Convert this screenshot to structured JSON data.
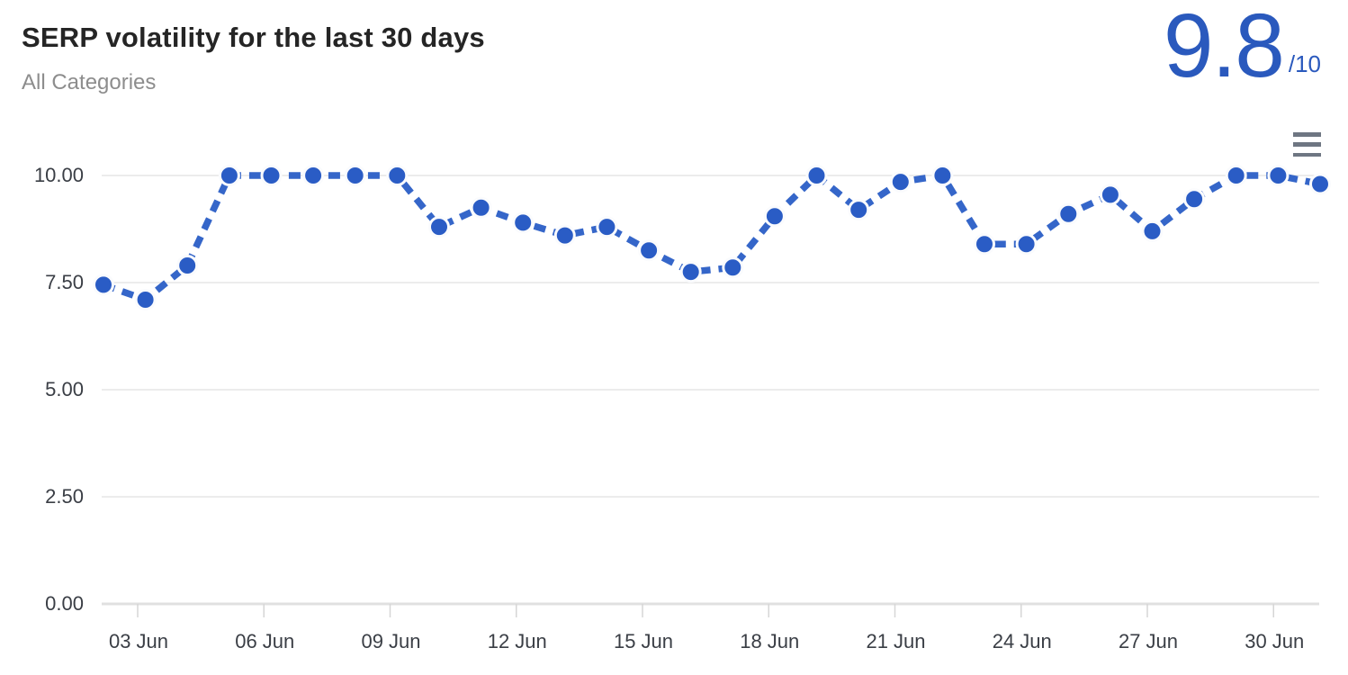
{
  "header": {
    "title": "SERP volatility for the last 30 days",
    "subtitle": "All Categories"
  },
  "score": {
    "value": "9.8",
    "denominator": "/10",
    "color": "#2a59bd"
  },
  "menu": {
    "icon": "hamburger-menu-icon"
  },
  "chart_data": {
    "type": "line",
    "title": "SERP volatility for the last 30 days",
    "subtitle": "All Categories",
    "x": [
      "02 Jun",
      "03 Jun",
      "04 Jun",
      "05 Jun",
      "06 Jun",
      "07 Jun",
      "08 Jun",
      "09 Jun",
      "10 Jun",
      "11 Jun",
      "12 Jun",
      "13 Jun",
      "14 Jun",
      "15 Jun",
      "16 Jun",
      "17 Jun",
      "18 Jun",
      "19 Jun",
      "20 Jun",
      "21 Jun",
      "22 Jun",
      "23 Jun",
      "24 Jun",
      "25 Jun",
      "26 Jun",
      "27 Jun",
      "28 Jun",
      "29 Jun",
      "30 Jun",
      "01 Jul"
    ],
    "values": [
      7.45,
      7.1,
      7.9,
      10,
      10,
      10,
      10,
      10,
      8.8,
      9.25,
      8.9,
      8.6,
      8.8,
      8.25,
      7.75,
      7.85,
      9.05,
      10,
      9.2,
      9.85,
      10,
      8.4,
      8.4,
      9.1,
      9.55,
      8.7,
      9.45,
      10,
      10,
      9.8
    ],
    "xlabel": "",
    "ylabel": "",
    "ylim": [
      0,
      10
    ],
    "ytick_values": [
      0,
      2.5,
      5,
      7.5,
      10
    ],
    "ytick_labels": [
      "0.00",
      "2.50",
      "5.00",
      "7.50",
      "10.00"
    ],
    "xtick_labels": [
      "03 Jun",
      "06 Jun",
      "09 Jun",
      "12 Jun",
      "15 Jun",
      "18 Jun",
      "21 Jun",
      "24 Jun",
      "27 Jun",
      "30 Jun"
    ],
    "grid": true,
    "legend": "none",
    "line_dashed": true,
    "colors": {
      "line": "#3566c9",
      "marker_fill": "#2a5cc5",
      "marker_ring": "#fafbfd",
      "grid_line": "#e6e6e6",
      "axis_line": "#e0e0e0",
      "tick_mark": "#d6d6d6",
      "axis_label": "#3a3e45"
    }
  }
}
